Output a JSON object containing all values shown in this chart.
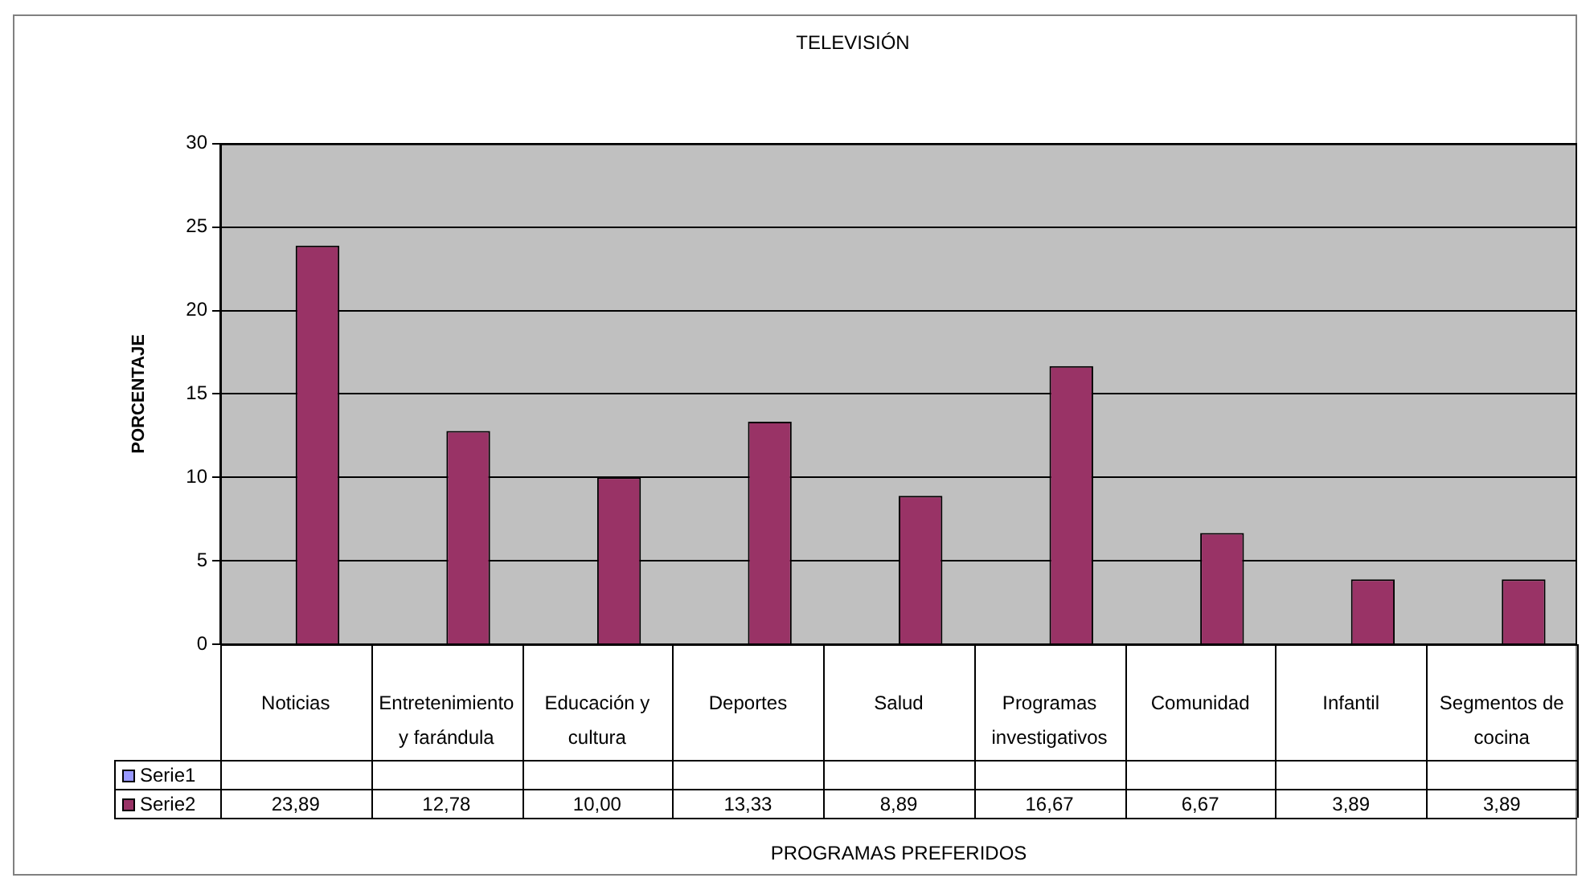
{
  "chart_data": {
    "type": "bar",
    "title": "TELEVISIÓN",
    "xlabel": "PROGRAMAS PREFERIDOS",
    "ylabel": "PORCENTAJE",
    "categories": [
      "Noticias",
      "Entretenimiento y farándula",
      "Educación y cultura",
      "Deportes",
      "Salud",
      "Programas investigativos",
      "Comunidad",
      "Infantil",
      "Segmentos de cocina"
    ],
    "series": [
      {
        "name": "Serie1",
        "color": "#9999ff",
        "values": [
          null,
          null,
          null,
          null,
          null,
          null,
          null,
          null,
          null
        ],
        "value_labels": [
          null,
          null,
          null,
          null,
          null,
          null,
          null,
          null,
          null
        ]
      },
      {
        "name": "Serie2",
        "color": "#993366",
        "values": [
          23.89,
          12.78,
          10,
          13.33,
          8.89,
          16.67,
          6.67,
          3.89,
          3.89
        ],
        "value_labels": [
          "23,89",
          "12,78",
          "10,00",
          "13,33",
          "8,89",
          "16,67",
          "6,67",
          "3,89",
          "3,89"
        ]
      }
    ],
    "ylim": [
      0,
      30
    ],
    "yticks": [
      0,
      5,
      10,
      15,
      20,
      25,
      30
    ],
    "grid": "y",
    "legend": "bottom left"
  }
}
